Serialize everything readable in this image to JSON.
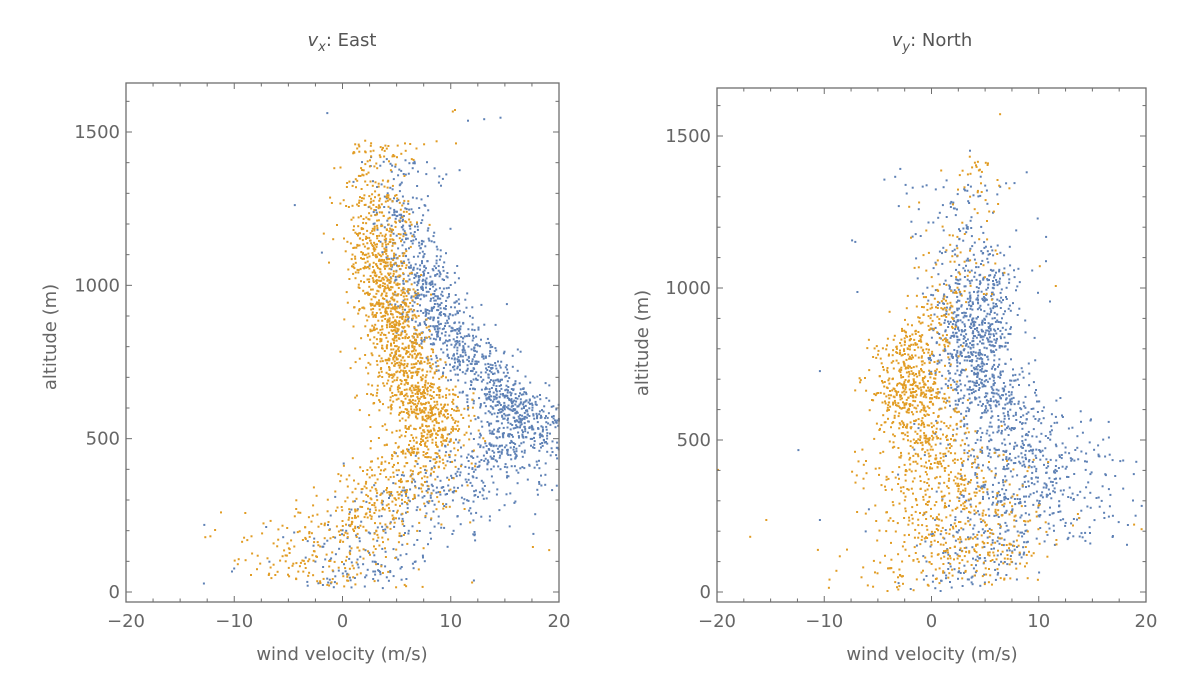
{
  "colors": {
    "series1": "#5e81b5",
    "series2": "#e19c24",
    "axis": "#6e6e6e",
    "text": "#666666"
  },
  "chart_data": [
    {
      "type": "scatter",
      "title_var": "v",
      "title_sub": "x",
      "title_rest": ": East",
      "xlabel": "wind velocity (m/s)",
      "ylabel": "altitude (m)",
      "xlim": [
        -20,
        20
      ],
      "ylim": [
        -30,
        1650
      ],
      "xticks": [
        -20,
        -10,
        0,
        10,
        20
      ],
      "xtick_labels": [
        "−20",
        "−10",
        "0",
        "10",
        "20"
      ],
      "yticks": [
        0,
        500,
        1000,
        1500
      ],
      "ytick_labels": [
        "0",
        "500",
        "1000",
        "1500"
      ],
      "grid": false,
      "series": [
        {
          "name": "series1",
          "color": "#5e81b5",
          "profile": [
            [
              20,
              1.0,
              3.5,
              90
            ],
            [
              150,
              3.0,
              4.5,
              120
            ],
            [
              300,
              8.0,
              4.0,
              200
            ],
            [
              450,
              15.0,
              3.0,
              220
            ],
            [
              550,
              17.5,
              2.0,
              260
            ],
            [
              650,
              14.5,
              2.0,
              240
            ],
            [
              800,
              10.5,
              1.8,
              230
            ],
            [
              950,
              8.0,
              1.5,
              200
            ],
            [
              1100,
              6.5,
              1.5,
              110
            ],
            [
              1250,
              5.5,
              1.8,
              50
            ],
            [
              1400,
              6.0,
              2.5,
              15
            ]
          ],
          "outliers": [
            [
              -1.5,
              1565
            ],
            [
              11.5,
              1540
            ],
            [
              13,
              1545
            ],
            [
              14.5,
              1550
            ],
            [
              -4.5,
              1265
            ],
            [
              -2.0,
              1110
            ],
            [
              9.5,
              1365
            ],
            [
              -10.3,
              70
            ],
            [
              -10.1,
              80
            ]
          ]
        },
        {
          "name": "series2",
          "color": "#e19c24",
          "profile": [
            [
              20,
              -1.0,
              4.0,
              120
            ],
            [
              150,
              -1.5,
              4.0,
              180
            ],
            [
              300,
              3.0,
              3.0,
              180
            ],
            [
              450,
              7.0,
              2.0,
              220
            ],
            [
              580,
              8.0,
              1.8,
              300
            ],
            [
              700,
              6.0,
              1.6,
              280
            ],
            [
              850,
              5.0,
              1.5,
              280
            ],
            [
              1000,
              3.8,
              1.5,
              230
            ],
            [
              1150,
              3.0,
              1.5,
              160
            ],
            [
              1300,
              3.0,
              1.8,
              60
            ],
            [
              1450,
              3.5,
              2.5,
              25
            ]
          ],
          "outliers": [
            [
              10.3,
              1575
            ],
            [
              10.1,
              1570
            ],
            [
              -12.3,
              185
            ],
            [
              -8.5,
              185
            ],
            [
              -4.5,
              250
            ],
            [
              17.5,
              150
            ],
            [
              19,
              140
            ]
          ]
        }
      ]
    },
    {
      "type": "scatter",
      "title_var": "v",
      "title_sub": "y",
      "title_rest": ": North",
      "xlabel": "wind velocity (m/s)",
      "ylabel": "altitude (m)",
      "xlim": [
        -20,
        20
      ],
      "ylim": [
        -30,
        1650
      ],
      "xticks": [
        -20,
        -10,
        0,
        10,
        20
      ],
      "xtick_labels": [
        "−20",
        "−10",
        "0",
        "10",
        "20"
      ],
      "yticks": [
        0,
        500,
        1000,
        1500
      ],
      "ytick_labels": [
        "0",
        "500",
        "1000",
        "1500"
      ],
      "grid": false,
      "series": [
        {
          "name": "series1",
          "color": "#5e81b5",
          "profile": [
            [
              20,
              2.0,
              3.0,
              90
            ],
            [
              150,
              6.0,
              5.0,
              170
            ],
            [
              300,
              9.5,
              3.5,
              230
            ],
            [
              450,
              9.0,
              3.5,
              220
            ],
            [
              600,
              6.5,
              2.2,
              260
            ],
            [
              750,
              3.8,
              1.8,
              300
            ],
            [
              900,
              4.0,
              2.0,
              220
            ],
            [
              1050,
              4.5,
              2.5,
              80
            ],
            [
              1200,
              3.0,
              3.0,
              40
            ],
            [
              1350,
              1.0,
              4.0,
              15
            ]
          ],
          "outliers": [
            [
              3.5,
              1455
            ],
            [
              -3.0,
              1395
            ],
            [
              -7.5,
              1160
            ],
            [
              -7.2,
              1155
            ],
            [
              -10.5,
              730
            ],
            [
              -12.5,
              470
            ],
            [
              -7.0,
              990
            ],
            [
              -10.5,
              240
            ]
          ]
        },
        {
          "name": "series2",
          "color": "#e19c24",
          "profile": [
            [
              20,
              0.5,
              4.5,
              150
            ],
            [
              150,
              3.0,
              4.0,
              220
            ],
            [
              300,
              2.0,
              3.5,
              200
            ],
            [
              450,
              0.5,
              2.5,
              200
            ],
            [
              600,
              -1.5,
              2.0,
              220
            ],
            [
              700,
              -2.0,
              1.8,
              200
            ],
            [
              850,
              -1.5,
              1.5,
              90
            ],
            [
              1000,
              2.0,
              2.5,
              40
            ],
            [
              1200,
              3.0,
              2.5,
              25
            ],
            [
              1400,
              4.5,
              1.0,
              15
            ]
          ],
          "outliers": [
            [
              6.3,
              1575
            ],
            [
              -20,
              405
            ],
            [
              -17,
              185
            ],
            [
              -15.5,
              240
            ],
            [
              10.0,
              1075
            ],
            [
              11.5,
              1010
            ],
            [
              19.5,
              210
            ],
            [
              18.8,
              225
            ]
          ]
        }
      ]
    }
  ]
}
